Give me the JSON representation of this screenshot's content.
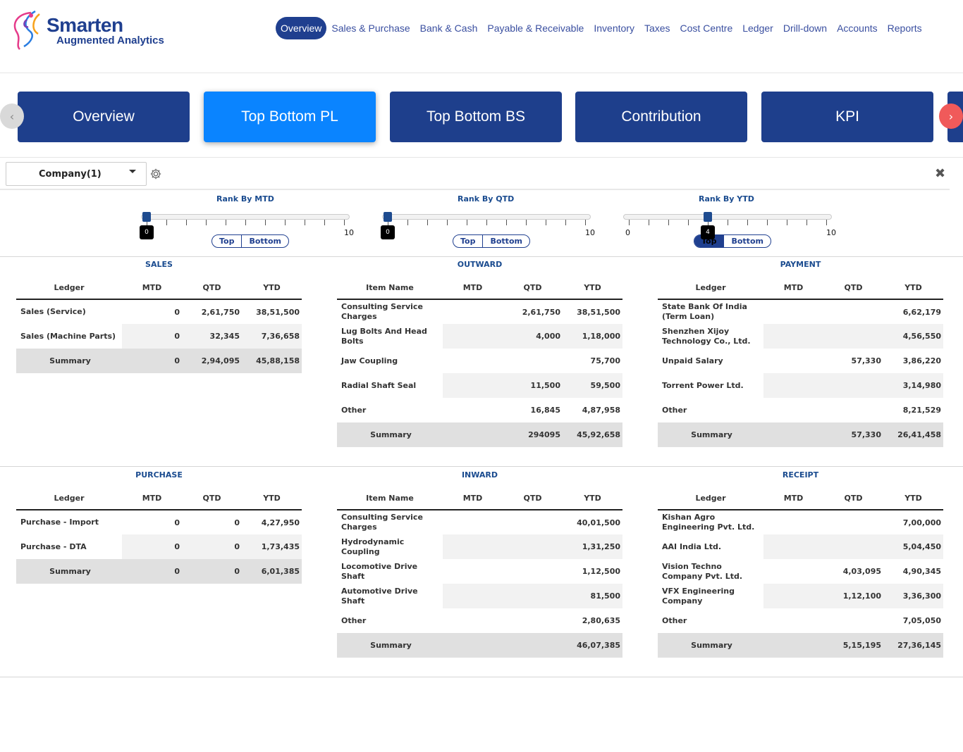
{
  "logo": {
    "title": "Smarten",
    "subtitle": "Augmented Analytics"
  },
  "nav": [
    "Overview",
    "Sales & Purchase",
    "Bank & Cash",
    "Payable & Receivable",
    "Inventory",
    "Taxes",
    "Cost Centre",
    "Ledger",
    "Drill-down",
    "Accounts",
    "Reports"
  ],
  "nav_active": "Overview",
  "carousel": {
    "tabs": [
      "Overview",
      "Top Bottom PL",
      "Top Bottom BS",
      "Contribution",
      "KPI"
    ],
    "active": "Top Bottom PL",
    "prev_icon": "chevron-left-icon",
    "next_icon": "chevron-right-icon"
  },
  "filter": {
    "company": "Company(1)"
  },
  "sliders": [
    {
      "title": "Rank By MTD",
      "value": "0",
      "min": "0",
      "max": "10",
      "top": "Top",
      "bottom": "Bottom",
      "selected": "none"
    },
    {
      "title": "Rank By QTD",
      "value": "0",
      "min": "0",
      "max": "10",
      "top": "Top",
      "bottom": "Bottom",
      "selected": "none"
    },
    {
      "title": "Rank By YTD",
      "value": "4",
      "min": "0",
      "max": "10",
      "top": "Top",
      "bottom": "Bottom",
      "selected": "Top"
    }
  ],
  "panels": {
    "sales": {
      "title": "SALES",
      "headers": [
        "Ledger",
        "MTD",
        "QTD",
        "YTD"
      ],
      "rows": [
        [
          "Sales (Service)",
          "0",
          "2,61,750",
          "38,51,500"
        ],
        [
          "Sales (Machine Parts)",
          "0",
          "32,345",
          "7,36,658"
        ]
      ],
      "summary": [
        "Summary",
        "0",
        "2,94,095",
        "45,88,158"
      ]
    },
    "outward": {
      "title": "OUTWARD",
      "headers": [
        "Item Name",
        "MTD",
        "QTD",
        "YTD"
      ],
      "rows": [
        [
          "Consulting Service Charges",
          "",
          "2,61,750",
          "38,51,500"
        ],
        [
          "Lug Bolts And Head Bolts",
          "",
          "4,000",
          "1,18,000"
        ],
        [
          "Jaw Coupling",
          "",
          "",
          "75,700"
        ],
        [
          "Radial Shaft Seal",
          "",
          "11,500",
          "59,500"
        ],
        [
          "Other",
          "",
          "16,845",
          "4,87,958"
        ]
      ],
      "summary": [
        "Summary",
        "",
        "294095",
        "45,92,658"
      ]
    },
    "payment": {
      "title": "PAYMENT",
      "headers": [
        "Ledger",
        "MTD",
        "QTD",
        "YTD"
      ],
      "rows": [
        [
          "State Bank Of India (Term Loan)",
          "",
          "",
          "6,62,179"
        ],
        [
          "Shenzhen Xijoy Technology Co., Ltd.",
          "",
          "",
          "4,56,550"
        ],
        [
          "Unpaid Salary",
          "",
          "57,330",
          "3,86,220"
        ],
        [
          "Torrent Power Ltd.",
          "",
          "",
          "3,14,980"
        ],
        [
          "Other",
          "",
          "",
          "8,21,529"
        ]
      ],
      "summary": [
        "Summary",
        "",
        "57,330",
        "26,41,458"
      ]
    },
    "purchase": {
      "title": "PURCHASE",
      "headers": [
        "Ledger",
        "MTD",
        "QTD",
        "YTD"
      ],
      "rows": [
        [
          "Purchase - Import",
          "0",
          "0",
          "4,27,950"
        ],
        [
          "Purchase - DTA",
          "0",
          "0",
          "1,73,435"
        ]
      ],
      "summary": [
        "Summary",
        "0",
        "0",
        "6,01,385"
      ]
    },
    "inward": {
      "title": "INWARD",
      "headers": [
        "Item Name",
        "MTD",
        "QTD",
        "YTD"
      ],
      "rows": [
        [
          "Consulting Service Charges",
          "",
          "",
          "40,01,500"
        ],
        [
          "Hydrodynamic Coupling",
          "",
          "",
          "1,31,250"
        ],
        [
          "Locomotive Drive Shaft",
          "",
          "",
          "1,12,500"
        ],
        [
          "Automotive Drive Shaft",
          "",
          "",
          "81,500"
        ],
        [
          "Other",
          "",
          "",
          "2,80,635"
        ]
      ],
      "summary": [
        "Summary",
        "",
        "",
        "46,07,385"
      ]
    },
    "receipt": {
      "title": "RECEIPT",
      "headers": [
        "Ledger",
        "MTD",
        "QTD",
        "YTD"
      ],
      "rows": [
        [
          "Kishan Agro Engineering Pvt. Ltd.",
          "",
          "",
          "7,00,000"
        ],
        [
          "AAI India Ltd.",
          "",
          "",
          "5,04,450"
        ],
        [
          "Vision Techno Company Pvt. Ltd.",
          "",
          "4,03,095",
          "4,90,345"
        ],
        [
          "VFX Engineering Company",
          "",
          "1,12,100",
          "3,36,300"
        ],
        [
          "Other",
          "",
          "",
          "7,05,050"
        ]
      ],
      "summary": [
        "Summary",
        "",
        "5,15,195",
        "27,36,145"
      ]
    }
  },
  "colors": {
    "brand": "#1f3f8f",
    "tab": "#1e3f8c",
    "tab_active": "#0a84ff",
    "next_arrow": "#f05a5a",
    "title_blue": "#1a4b8f"
  }
}
